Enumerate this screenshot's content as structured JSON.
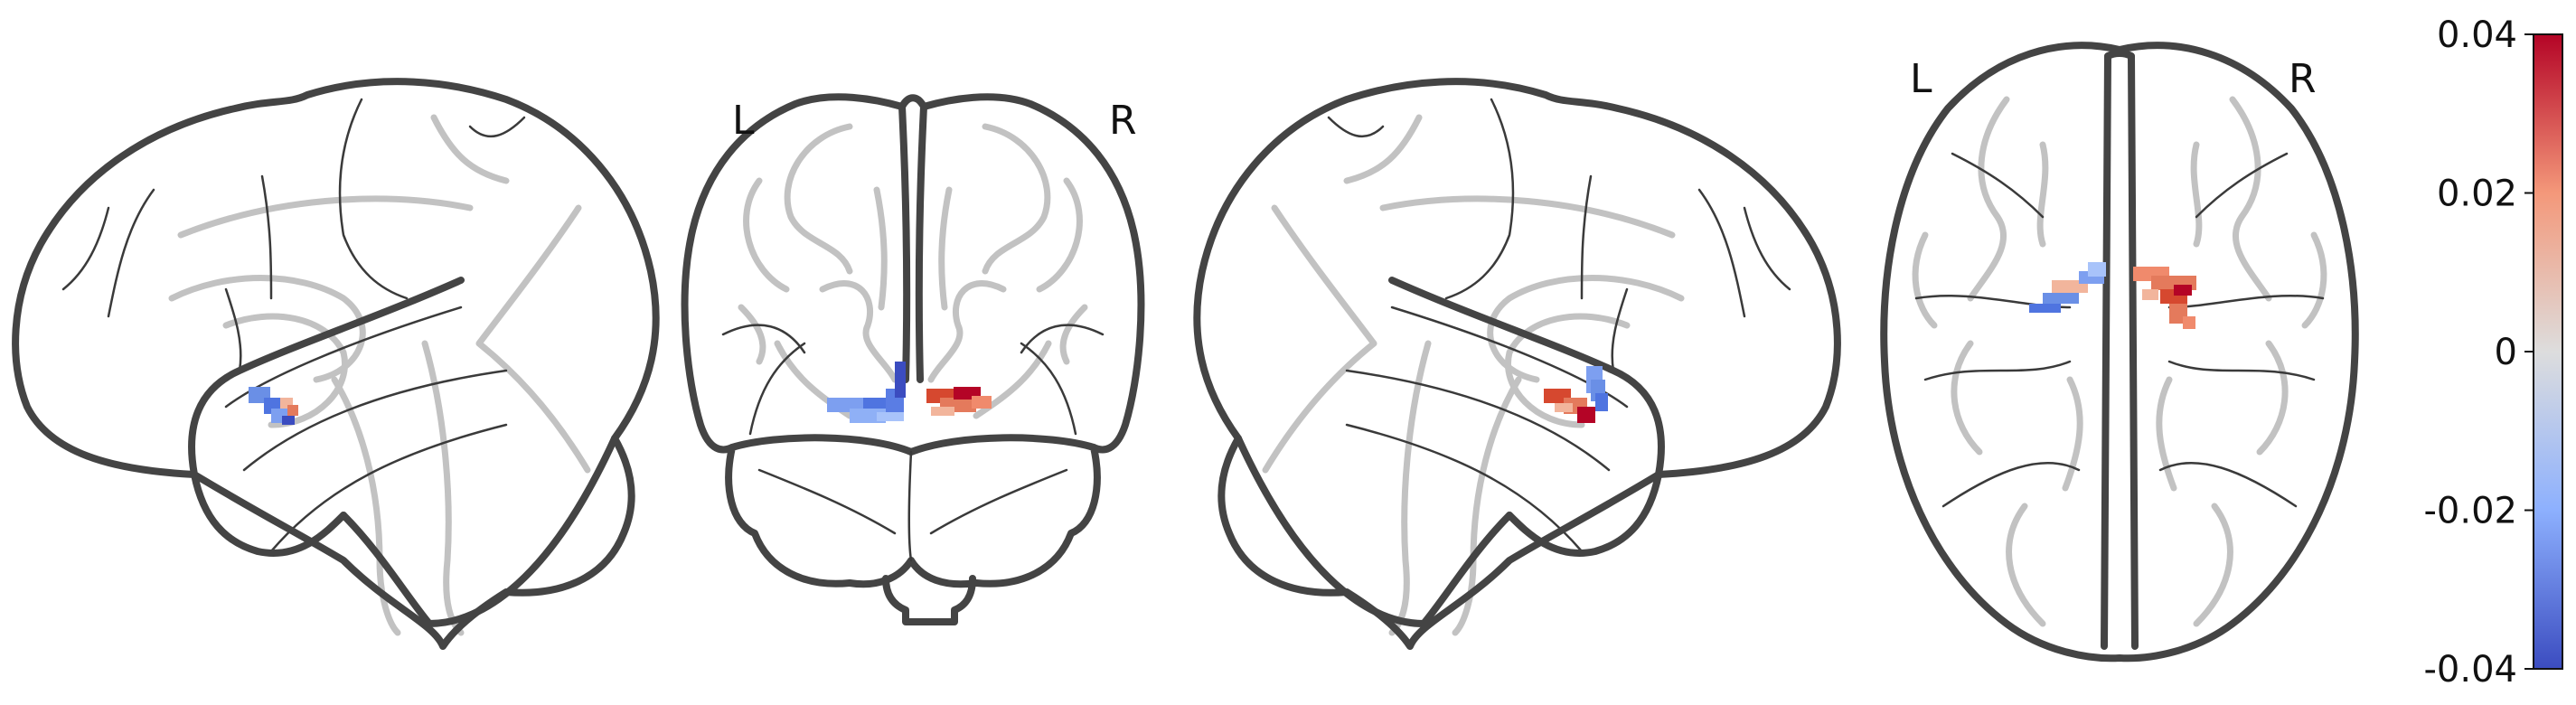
{
  "views": {
    "sagittal_left": {
      "orientation": []
    },
    "coronal": {
      "orientation": [
        "L",
        "R"
      ]
    },
    "sagittal_right": {
      "orientation": []
    },
    "axial": {
      "orientation": [
        "L",
        "R"
      ]
    }
  },
  "colorbar": {
    "colormap": "coolwarm",
    "min": -0.04,
    "max": 0.04,
    "ticks": [
      {
        "value": 0.04,
        "label": "0.04"
      },
      {
        "value": 0.02,
        "label": "0.02"
      },
      {
        "value": 0,
        "label": "0"
      },
      {
        "value": -0.02,
        "label": "-0.02"
      },
      {
        "value": -0.04,
        "label": "-0.04"
      }
    ],
    "colors": {
      "low": "#3b4cc0",
      "mid": "#dddddd",
      "high": "#b40426"
    }
  },
  "colors": {
    "outline": "#444444",
    "inner_structure": "#c2c2c2",
    "positive": "#d6482f",
    "negative": "#6a8fe6"
  }
}
